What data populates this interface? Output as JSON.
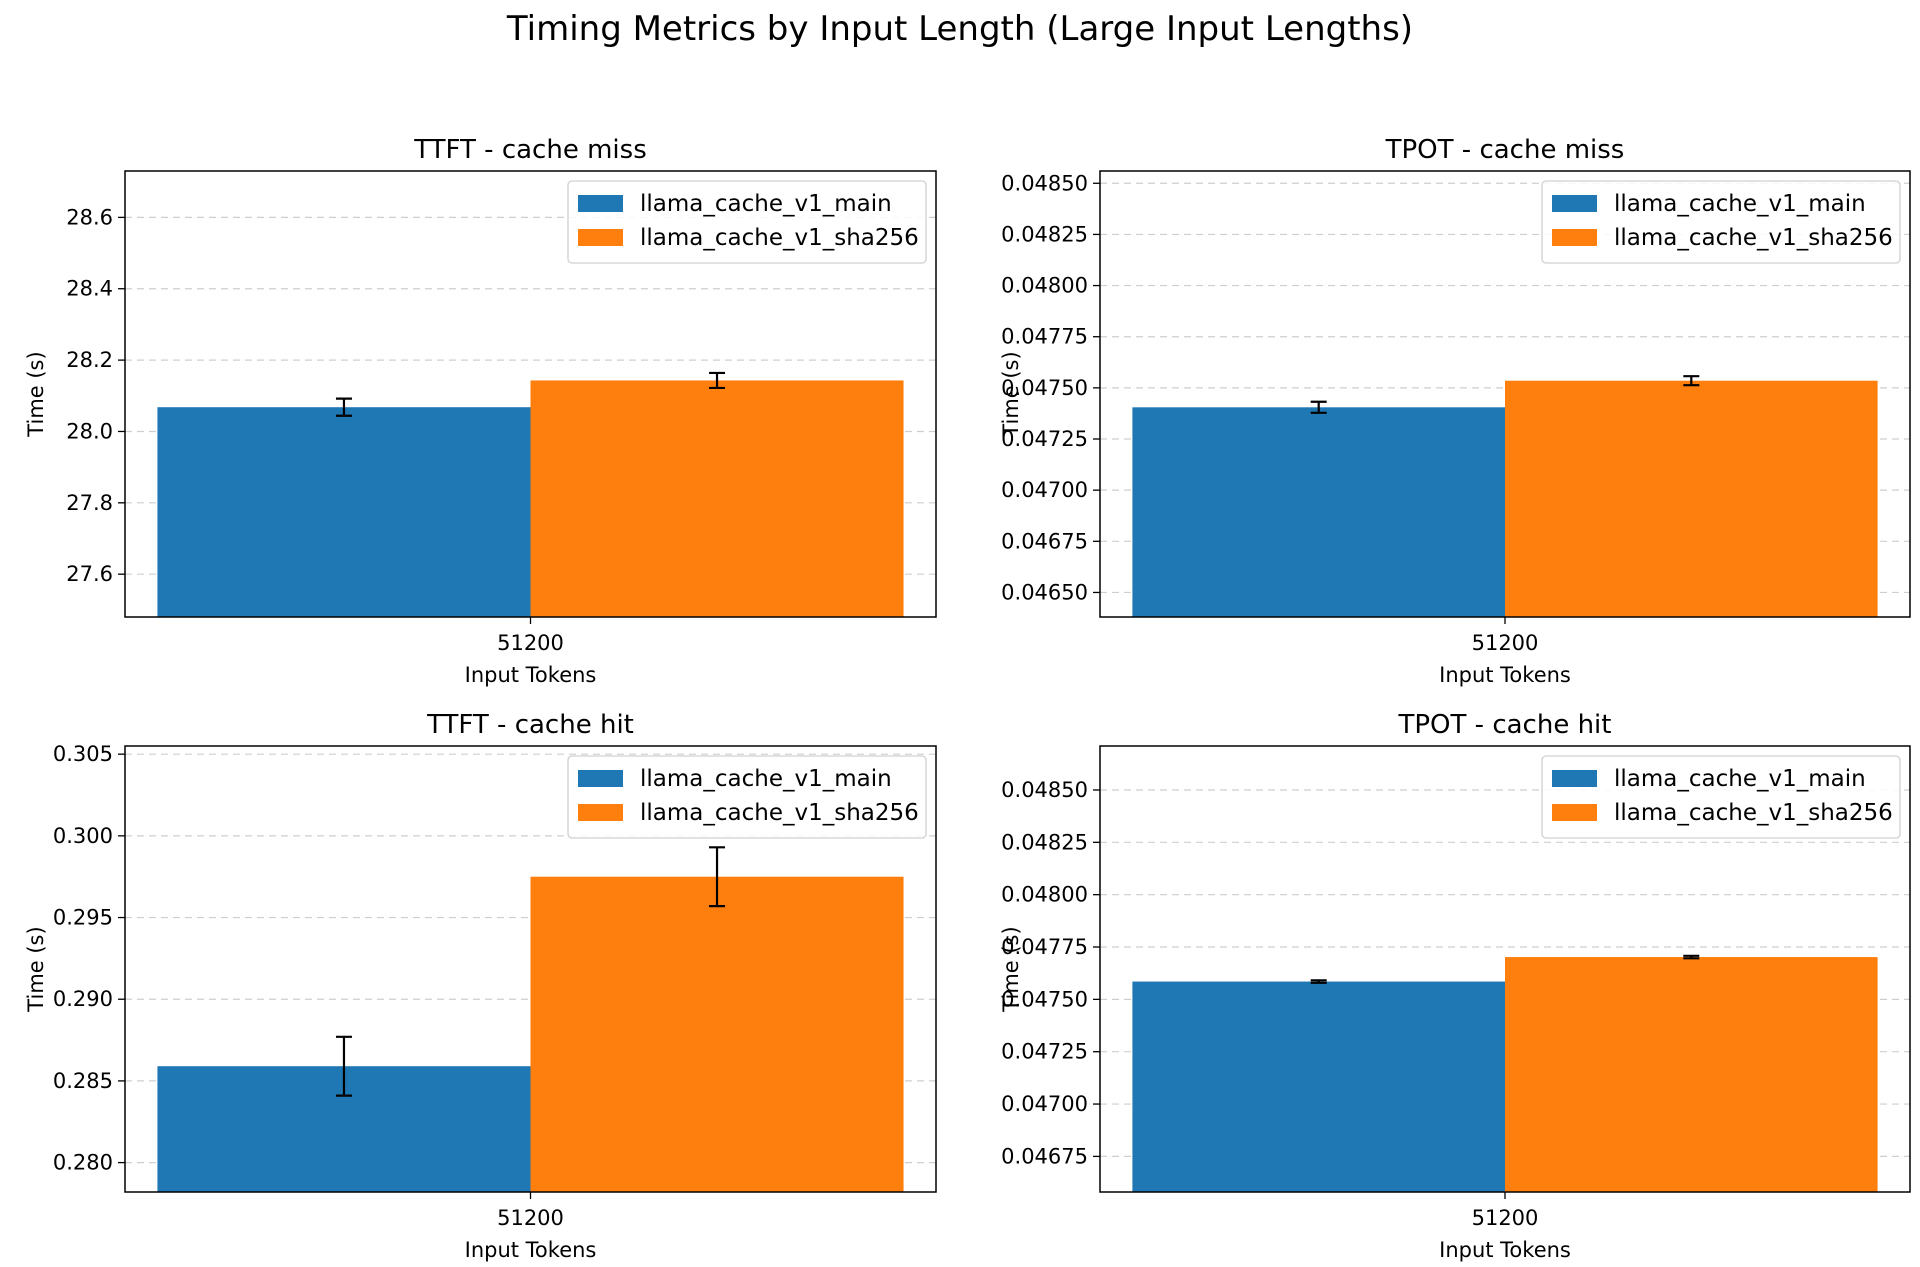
{
  "figure": {
    "title": "Timing Metrics by Input Length (Large Input Lengths)"
  },
  "chart_data": [
    {
      "type": "bar",
      "title": "TTFT - cache miss",
      "xlabel": "Input Tokens",
      "ylabel": "Time (s)",
      "categories": [
        "51200"
      ],
      "ylim": [
        27.48,
        28.73
      ],
      "yticks": [
        27.6,
        27.8,
        28.0,
        28.2,
        28.4,
        28.6
      ],
      "ytick_labels": [
        "27.6",
        "27.8",
        "28.0",
        "28.2",
        "28.4",
        "28.6"
      ],
      "grid": "y-dashed",
      "legend_position": "top-right",
      "series": [
        {
          "name": "llama_cache_v1_main",
          "color": "#1f77b4",
          "values": [
            28.068
          ],
          "errors": [
            0.024
          ]
        },
        {
          "name": "llama_cache_v1_sha256",
          "color": "#ff7f0e",
          "values": [
            28.143
          ],
          "errors": [
            0.021
          ]
        }
      ]
    },
    {
      "type": "bar",
      "title": "TPOT - cache miss",
      "xlabel": "Input Tokens",
      "ylabel": "Time (s)",
      "categories": [
        "51200"
      ],
      "ylim": [
        0.04638,
        0.04856
      ],
      "yticks": [
        0.0465,
        0.04675,
        0.047,
        0.04725,
        0.0475,
        0.04775,
        0.048,
        0.04825,
        0.0485
      ],
      "ytick_labels": [
        "0.04650",
        "0.04675",
        "0.04700",
        "0.04725",
        "0.04750",
        "0.04775",
        "0.04800",
        "0.04825",
        "0.04850"
      ],
      "grid": "y-dashed",
      "legend_position": "top-right",
      "series": [
        {
          "name": "llama_cache_v1_main",
          "color": "#1f77b4",
          "values": [
            0.047405
          ],
          "errors": [
            2.7e-05
          ]
        },
        {
          "name": "llama_cache_v1_sha256",
          "color": "#ff7f0e",
          "values": [
            0.047535
          ],
          "errors": [
            2.2e-05
          ]
        }
      ]
    },
    {
      "type": "bar",
      "title": "TTFT - cache hit",
      "xlabel": "Input Tokens",
      "ylabel": "Time (s)",
      "categories": [
        "51200"
      ],
      "ylim": [
        0.2782,
        0.3055
      ],
      "yticks": [
        0.28,
        0.285,
        0.29,
        0.295,
        0.3,
        0.305
      ],
      "ytick_labels": [
        "0.280",
        "0.285",
        "0.290",
        "0.295",
        "0.300",
        "0.305"
      ],
      "grid": "y-dashed",
      "legend_position": "top-right",
      "series": [
        {
          "name": "llama_cache_v1_main",
          "color": "#1f77b4",
          "values": [
            0.2859
          ],
          "errors": [
            0.0018
          ]
        },
        {
          "name": "llama_cache_v1_sha256",
          "color": "#ff7f0e",
          "values": [
            0.2975
          ],
          "errors": [
            0.0018
          ]
        }
      ]
    },
    {
      "type": "bar",
      "title": "TPOT - cache hit",
      "xlabel": "Input Tokens",
      "ylabel": "Time (s)",
      "categories": [
        "51200"
      ],
      "ylim": [
        0.04658,
        0.04871
      ],
      "yticks": [
        0.04675,
        0.047,
        0.04725,
        0.0475,
        0.04775,
        0.048,
        0.04825,
        0.0485
      ],
      "ytick_labels": [
        "0.04675",
        "0.04700",
        "0.04725",
        "0.04750",
        "0.04775",
        "0.04800",
        "0.04825",
        "0.04850"
      ],
      "grid": "y-dashed",
      "legend_position": "top-right",
      "series": [
        {
          "name": "llama_cache_v1_main",
          "color": "#1f77b4",
          "values": [
            0.047585
          ],
          "errors": [
            6e-06
          ]
        },
        {
          "name": "llama_cache_v1_sha256",
          "color": "#ff7f0e",
          "values": [
            0.047702
          ],
          "errors": [
            6e-06
          ]
        }
      ]
    }
  ]
}
